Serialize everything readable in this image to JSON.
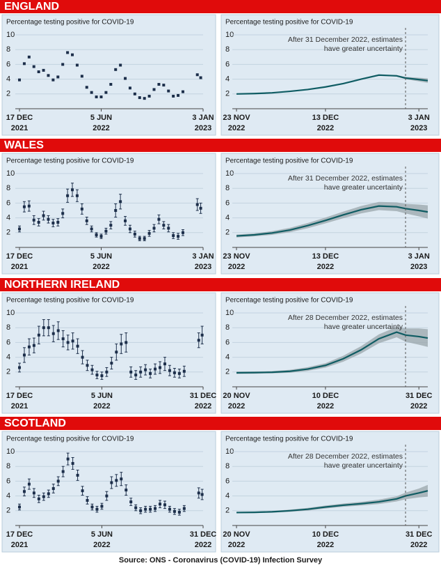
{
  "sections": [
    "ENGLAND",
    "WALES",
    "NORTHERN IRELAND",
    "SCOTLAND"
  ],
  "source": "Source: ONS - Coronavirus (COVID-19) Infection Survey",
  "chart_data": [
    {
      "type": "scatter",
      "subtitle": "Percentage testing positive for COVID-19",
      "color": "#1c2e4a",
      "x": [
        "2021-12-17",
        "2021-12-27",
        "2022-01-06",
        "2022-01-16",
        "2022-01-26",
        "2022-02-05",
        "2022-02-15",
        "2022-02-25",
        "2022-03-07",
        "2022-03-17",
        "2022-03-27",
        "2022-04-06",
        "2022-04-16",
        "2022-04-26",
        "2022-05-06",
        "2022-05-16",
        "2022-05-26",
        "2022-06-05",
        "2022-06-15",
        "2022-06-25",
        "2022-07-05",
        "2022-07-15",
        "2022-07-25",
        "2022-08-04",
        "2022-08-14",
        "2022-08-24",
        "2022-09-03",
        "2022-09-13",
        "2022-09-23",
        "2022-10-03",
        "2022-10-13",
        "2022-10-23",
        "2022-11-02",
        "2022-11-12",
        "2022-11-22",
        "2022-12-22",
        "2022-12-29"
      ],
      "values": [
        3.9,
        6.1,
        7.0,
        5.7,
        5.0,
        5.2,
        4.5,
        3.9,
        4.3,
        6.0,
        7.6,
        7.3,
        5.9,
        4.4,
        2.9,
        2.2,
        1.6,
        1.6,
        2.2,
        3.3,
        5.3,
        5.9,
        4.1,
        2.8,
        2.0,
        1.5,
        1.4,
        1.7,
        2.6,
        3.3,
        3.2,
        2.4,
        1.7,
        1.8,
        2.3,
        4.6,
        4.2
      ],
      "xlim": [
        "2021-12-17",
        "2023-01-03"
      ],
      "xticks": [
        {
          "value": "2021-12-17",
          "label": "17 DEC",
          "year": "2021"
        },
        {
          "value": "2022-06-05",
          "label": "5 JUN",
          "year": "2022"
        },
        {
          "value": "2023-01-03",
          "label": "3 JAN",
          "year": "2023"
        }
      ],
      "ylim": [
        0,
        10
      ],
      "yticks": [
        2,
        4,
        6,
        8,
        10
      ],
      "grid": true
    },
    {
      "type": "line",
      "subtitle": "Percentage testing positive for COVID-19",
      "color": "#0f5c63",
      "band_color": "#9aa6ab",
      "annotation": [
        "After 31 December 2022, estimates",
        "have greater uncertainty"
      ],
      "uncertainty_from": "2022-12-31",
      "x": [
        "2022-11-23",
        "2022-11-27",
        "2022-12-01",
        "2022-12-05",
        "2022-12-09",
        "2022-12-13",
        "2022-12-17",
        "2022-12-21",
        "2022-12-25",
        "2022-12-29",
        "2022-12-31",
        "2023-01-03",
        "2023-01-05"
      ],
      "values": [
        2.0,
        2.05,
        2.15,
        2.35,
        2.6,
        2.95,
        3.4,
        4.0,
        4.55,
        4.45,
        4.15,
        3.95,
        3.8
      ],
      "lower": [
        1.95,
        2.0,
        2.1,
        2.3,
        2.55,
        2.9,
        3.35,
        3.95,
        4.5,
        4.35,
        4.0,
        3.7,
        3.5
      ],
      "upper": [
        2.05,
        2.1,
        2.2,
        2.4,
        2.65,
        3.0,
        3.45,
        4.05,
        4.6,
        4.55,
        4.3,
        4.2,
        4.1
      ],
      "xlim": [
        "2022-11-23",
        "2023-01-05"
      ],
      "xticks": [
        {
          "value": "2022-11-23",
          "label": "23 NOV",
          "year": "2022"
        },
        {
          "value": "2022-12-13",
          "label": "13 DEC",
          "year": "2022"
        },
        {
          "value": "2023-01-03",
          "label": "3 JAN",
          "year": "2023"
        }
      ],
      "ylim": [
        0,
        10
      ],
      "yticks": [
        2,
        4,
        6,
        8,
        10
      ],
      "grid": true
    },
    {
      "type": "scatter",
      "subtitle": "Percentage testing positive for COVID-19",
      "color": "#1c2e4a",
      "x": [
        "2021-12-17",
        "2021-12-27",
        "2022-01-06",
        "2022-01-16",
        "2022-01-26",
        "2022-02-05",
        "2022-02-15",
        "2022-02-25",
        "2022-03-07",
        "2022-03-17",
        "2022-03-27",
        "2022-04-06",
        "2022-04-16",
        "2022-04-26",
        "2022-05-06",
        "2022-05-16",
        "2022-05-26",
        "2022-06-05",
        "2022-06-15",
        "2022-06-25",
        "2022-07-05",
        "2022-07-15",
        "2022-07-25",
        "2022-08-04",
        "2022-08-14",
        "2022-08-24",
        "2022-09-03",
        "2022-09-13",
        "2022-09-23",
        "2022-10-03",
        "2022-10-13",
        "2022-10-23",
        "2022-11-02",
        "2022-11-12",
        "2022-11-22",
        "2022-12-22",
        "2022-12-29"
      ],
      "values": [
        2.5,
        5.5,
        5.6,
        3.7,
        3.4,
        4.3,
        3.8,
        3.3,
        3.4,
        4.6,
        7.0,
        7.8,
        7.0,
        5.2,
        3.6,
        2.5,
        1.7,
        1.5,
        2.2,
        3.0,
        5.0,
        6.2,
        3.6,
        2.5,
        1.8,
        1.2,
        1.2,
        1.9,
        2.6,
        3.8,
        3.0,
        2.6,
        1.6,
        1.5,
        2.0,
        5.8,
        5.3
      ],
      "errors": [
        0.4,
        0.7,
        0.7,
        0.6,
        0.5,
        0.6,
        0.5,
        0.5,
        0.5,
        0.6,
        0.9,
        0.9,
        0.8,
        0.7,
        0.5,
        0.4,
        0.3,
        0.3,
        0.4,
        0.5,
        0.9,
        1.0,
        0.6,
        0.5,
        0.4,
        0.3,
        0.3,
        0.4,
        0.5,
        0.6,
        0.5,
        0.5,
        0.4,
        0.4,
        0.4,
        0.8,
        0.7
      ],
      "xlim": [
        "2021-12-17",
        "2023-01-03"
      ],
      "xticks": [
        {
          "value": "2021-12-17",
          "label": "17 DEC",
          "year": "2021"
        },
        {
          "value": "2022-06-05",
          "label": "5 JUN",
          "year": "2022"
        },
        {
          "value": "2023-01-03",
          "label": "3 JAN",
          "year": "2023"
        }
      ],
      "ylim": [
        0,
        10
      ],
      "yticks": [
        2,
        4,
        6,
        8,
        10
      ],
      "grid": true
    },
    {
      "type": "line",
      "subtitle": "Percentage testing positive for COVID-19",
      "color": "#0f5c63",
      "band_color": "#9aa6ab",
      "annotation": [
        "After 31 December 2022, estimates",
        "have greater uncertainty"
      ],
      "uncertainty_from": "2022-12-31",
      "x": [
        "2022-11-23",
        "2022-11-27",
        "2022-12-01",
        "2022-12-05",
        "2022-12-09",
        "2022-12-13",
        "2022-12-17",
        "2022-12-21",
        "2022-12-25",
        "2022-12-29",
        "2022-12-31",
        "2023-01-03",
        "2023-01-05"
      ],
      "values": [
        1.55,
        1.7,
        1.95,
        2.35,
        2.95,
        3.65,
        4.4,
        5.1,
        5.6,
        5.5,
        5.25,
        5.0,
        4.8
      ],
      "lower": [
        1.35,
        1.5,
        1.7,
        2.05,
        2.6,
        3.25,
        3.95,
        4.6,
        5.05,
        4.9,
        4.6,
        4.2,
        3.9
      ],
      "upper": [
        1.75,
        1.9,
        2.2,
        2.65,
        3.3,
        4.05,
        4.85,
        5.6,
        6.15,
        6.1,
        5.9,
        5.8,
        5.7
      ],
      "xlim": [
        "2022-11-23",
        "2023-01-05"
      ],
      "xticks": [
        {
          "value": "2022-11-23",
          "label": "23 NOV",
          "year": "2022"
        },
        {
          "value": "2022-12-13",
          "label": "13 DEC",
          "year": "2022"
        },
        {
          "value": "2023-01-03",
          "label": "3 JAN",
          "year": "2023"
        }
      ],
      "ylim": [
        0,
        10
      ],
      "yticks": [
        2,
        4,
        6,
        8,
        10
      ],
      "grid": true
    },
    {
      "type": "scatter",
      "subtitle": "Percentage testing positive for COVID-19",
      "color": "#1c2e4a",
      "x": [
        "2021-12-17",
        "2021-12-27",
        "2022-01-06",
        "2022-01-16",
        "2022-01-26",
        "2022-02-05",
        "2022-02-15",
        "2022-02-25",
        "2022-03-07",
        "2022-03-17",
        "2022-03-27",
        "2022-04-06",
        "2022-04-16",
        "2022-04-26",
        "2022-05-06",
        "2022-05-16",
        "2022-05-26",
        "2022-06-05",
        "2022-06-15",
        "2022-06-25",
        "2022-07-05",
        "2022-07-15",
        "2022-07-25",
        "2022-08-04",
        "2022-08-14",
        "2022-08-24",
        "2022-09-03",
        "2022-09-13",
        "2022-09-23",
        "2022-10-03",
        "2022-10-13",
        "2022-10-23",
        "2022-11-02",
        "2022-11-12",
        "2022-11-22",
        "2022-12-22",
        "2022-12-29"
      ],
      "values": [
        2.6,
        4.3,
        5.4,
        5.6,
        7.0,
        8.0,
        8.0,
        7.2,
        7.6,
        6.5,
        6.0,
        6.2,
        5.5,
        4.0,
        2.9,
        2.3,
        1.6,
        1.5,
        2.0,
        3.2,
        4.7,
        5.8,
        6.0,
        2.0,
        1.6,
        2.0,
        2.3,
        1.8,
        2.4,
        2.6,
        3.1,
        2.2,
        1.9,
        1.8,
        2.1,
        6.3,
        7.0
      ],
      "errors": [
        0.6,
        1.0,
        1.1,
        1.0,
        1.2,
        1.1,
        1.1,
        1.1,
        1.2,
        1.1,
        1.0,
        1.1,
        1.0,
        0.9,
        0.7,
        0.6,
        0.5,
        0.5,
        0.6,
        0.8,
        1.1,
        1.3,
        1.3,
        0.7,
        0.6,
        0.7,
        0.7,
        0.6,
        0.7,
        0.8,
        0.9,
        0.7,
        0.6,
        0.6,
        0.7,
        1.0,
        1.2
      ],
      "xlim": [
        "2021-12-17",
        "2022-12-31"
      ],
      "xticks": [
        {
          "value": "2021-12-17",
          "label": "17 DEC",
          "year": "2021"
        },
        {
          "value": "2022-06-05",
          "label": "5 JUN",
          "year": "2022"
        },
        {
          "value": "2022-12-31",
          "label": "31 DEC",
          "year": "2022"
        }
      ],
      "ylim": [
        0,
        10
      ],
      "yticks": [
        2,
        4,
        6,
        8,
        10
      ],
      "grid": true
    },
    {
      "type": "line",
      "subtitle": "Percentage testing positive for COVID-19",
      "color": "#0f5c63",
      "band_color": "#9aa6ab",
      "annotation": [
        "After 28 December 2022, estimates",
        "have greater uncertainty"
      ],
      "uncertainty_from": "2022-12-28",
      "x": [
        "2022-11-20",
        "2022-11-24",
        "2022-11-28",
        "2022-12-02",
        "2022-12-06",
        "2022-12-10",
        "2022-12-14",
        "2022-12-18",
        "2022-12-22",
        "2022-12-26",
        "2022-12-28",
        "2022-12-31",
        "2023-01-02"
      ],
      "values": [
        1.9,
        1.92,
        1.97,
        2.1,
        2.4,
        2.9,
        3.8,
        5.0,
        6.5,
        7.4,
        7.0,
        6.8,
        6.6
      ],
      "lower": [
        1.75,
        1.77,
        1.82,
        1.9,
        2.15,
        2.6,
        3.4,
        4.5,
        5.9,
        6.7,
        6.1,
        5.7,
        5.4
      ],
      "upper": [
        2.05,
        2.07,
        2.12,
        2.3,
        2.65,
        3.2,
        4.2,
        5.5,
        7.1,
        8.1,
        7.9,
        7.9,
        7.8
      ],
      "xlim": [
        "2022-11-20",
        "2023-01-02"
      ],
      "xticks": [
        {
          "value": "2022-11-20",
          "label": "20 NOV",
          "year": "2022"
        },
        {
          "value": "2022-12-10",
          "label": "10 DEC",
          "year": "2022"
        },
        {
          "value": "2022-12-31",
          "label": "31 DEC",
          "year": "2022"
        }
      ],
      "ylim": [
        0,
        10
      ],
      "yticks": [
        2,
        4,
        6,
        8,
        10
      ],
      "grid": true
    },
    {
      "type": "scatter",
      "subtitle": "Percentage testing positive for COVID-19",
      "color": "#1c2e4a",
      "x": [
        "2021-12-17",
        "2021-12-27",
        "2022-01-06",
        "2022-01-16",
        "2022-01-26",
        "2022-02-05",
        "2022-02-15",
        "2022-02-25",
        "2022-03-07",
        "2022-03-17",
        "2022-03-27",
        "2022-04-06",
        "2022-04-16",
        "2022-04-26",
        "2022-05-06",
        "2022-05-16",
        "2022-05-26",
        "2022-06-05",
        "2022-06-15",
        "2022-06-25",
        "2022-07-05",
        "2022-07-15",
        "2022-07-25",
        "2022-08-04",
        "2022-08-14",
        "2022-08-24",
        "2022-09-03",
        "2022-09-13",
        "2022-09-23",
        "2022-10-03",
        "2022-10-13",
        "2022-10-23",
        "2022-11-02",
        "2022-11-12",
        "2022-11-22",
        "2022-12-22",
        "2022-12-29"
      ],
      "values": [
        2.5,
        4.6,
        5.6,
        4.4,
        3.6,
        3.9,
        4.3,
        5.0,
        6.0,
        7.3,
        9.0,
        8.4,
        6.8,
        4.7,
        3.4,
        2.5,
        2.2,
        2.6,
        4.0,
        5.8,
        6.1,
        6.3,
        4.8,
        3.2,
        2.4,
        2.0,
        2.2,
        2.2,
        2.3,
        2.9,
        2.8,
        2.2,
        1.9,
        1.8,
        2.3,
        4.4,
        4.2
      ],
      "errors": [
        0.4,
        0.6,
        0.7,
        0.6,
        0.5,
        0.5,
        0.5,
        0.6,
        0.6,
        0.7,
        0.8,
        0.8,
        0.7,
        0.6,
        0.5,
        0.4,
        0.4,
        0.4,
        0.6,
        0.8,
        0.8,
        0.9,
        0.7,
        0.5,
        0.4,
        0.4,
        0.4,
        0.4,
        0.4,
        0.5,
        0.5,
        0.4,
        0.4,
        0.4,
        0.4,
        0.7,
        0.7
      ],
      "xlim": [
        "2021-12-17",
        "2022-12-31"
      ],
      "xticks": [
        {
          "value": "2021-12-17",
          "label": "17 DEC",
          "year": "2021"
        },
        {
          "value": "2022-06-05",
          "label": "5 JUN",
          "year": "2022"
        },
        {
          "value": "2022-12-31",
          "label": "31 DEC",
          "year": "2022"
        }
      ],
      "ylim": [
        0,
        10
      ],
      "yticks": [
        2,
        4,
        6,
        8,
        10
      ],
      "grid": true
    },
    {
      "type": "line",
      "subtitle": "Percentage testing positive for COVID-19",
      "color": "#0f5c63",
      "band_color": "#9aa6ab",
      "annotation": [
        "After 28 December 2022, estimates",
        "have greater uncertainty"
      ],
      "uncertainty_from": "2022-12-28",
      "x": [
        "2022-11-20",
        "2022-11-24",
        "2022-11-28",
        "2022-12-02",
        "2022-12-06",
        "2022-12-10",
        "2022-12-14",
        "2022-12-18",
        "2022-12-22",
        "2022-12-26",
        "2022-12-28",
        "2022-12-31",
        "2023-01-02"
      ],
      "values": [
        1.75,
        1.78,
        1.85,
        2.0,
        2.2,
        2.5,
        2.75,
        2.95,
        3.2,
        3.6,
        4.0,
        4.4,
        4.7
      ],
      "lower": [
        1.65,
        1.68,
        1.73,
        1.85,
        2.02,
        2.3,
        2.53,
        2.7,
        2.9,
        3.25,
        3.55,
        3.8,
        3.9
      ],
      "upper": [
        1.85,
        1.88,
        1.97,
        2.15,
        2.38,
        2.7,
        2.97,
        3.2,
        3.5,
        3.95,
        4.45,
        5.0,
        5.5
      ],
      "xlim": [
        "2022-11-20",
        "2023-01-02"
      ],
      "xticks": [
        {
          "value": "2022-11-20",
          "label": "20 NOV",
          "year": "2022"
        },
        {
          "value": "2022-12-10",
          "label": "10 DEC",
          "year": "2022"
        },
        {
          "value": "2022-12-31",
          "label": "31 DEC",
          "year": "2022"
        }
      ],
      "ylim": [
        0,
        10
      ],
      "yticks": [
        2,
        4,
        6,
        8,
        10
      ],
      "grid": true
    }
  ]
}
